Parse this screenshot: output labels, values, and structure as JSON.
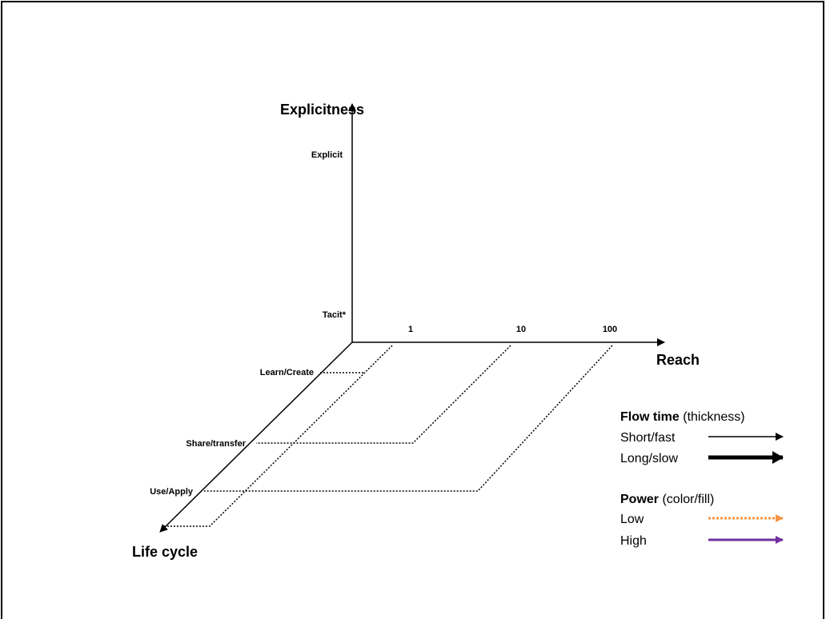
{
  "axes": {
    "vertical": {
      "title": "Explicitness",
      "top_label": "Explicit",
      "bottom_label": "Tacit*"
    },
    "horizontal": {
      "title": "Reach",
      "ticks": [
        "1",
        "10",
        "100"
      ]
    },
    "diagonal": {
      "title": "Life cycle",
      "stages": [
        "Learn/Create",
        "Share/transfer",
        "Use/Apply"
      ]
    }
  },
  "legend": {
    "flow": {
      "title": "Flow time",
      "note": "(thickness)",
      "items": [
        "Short/fast",
        "Long/slow"
      ]
    },
    "power": {
      "title": "Power",
      "note": "(color/fill)",
      "items": [
        "Low",
        "High"
      ]
    }
  }
}
